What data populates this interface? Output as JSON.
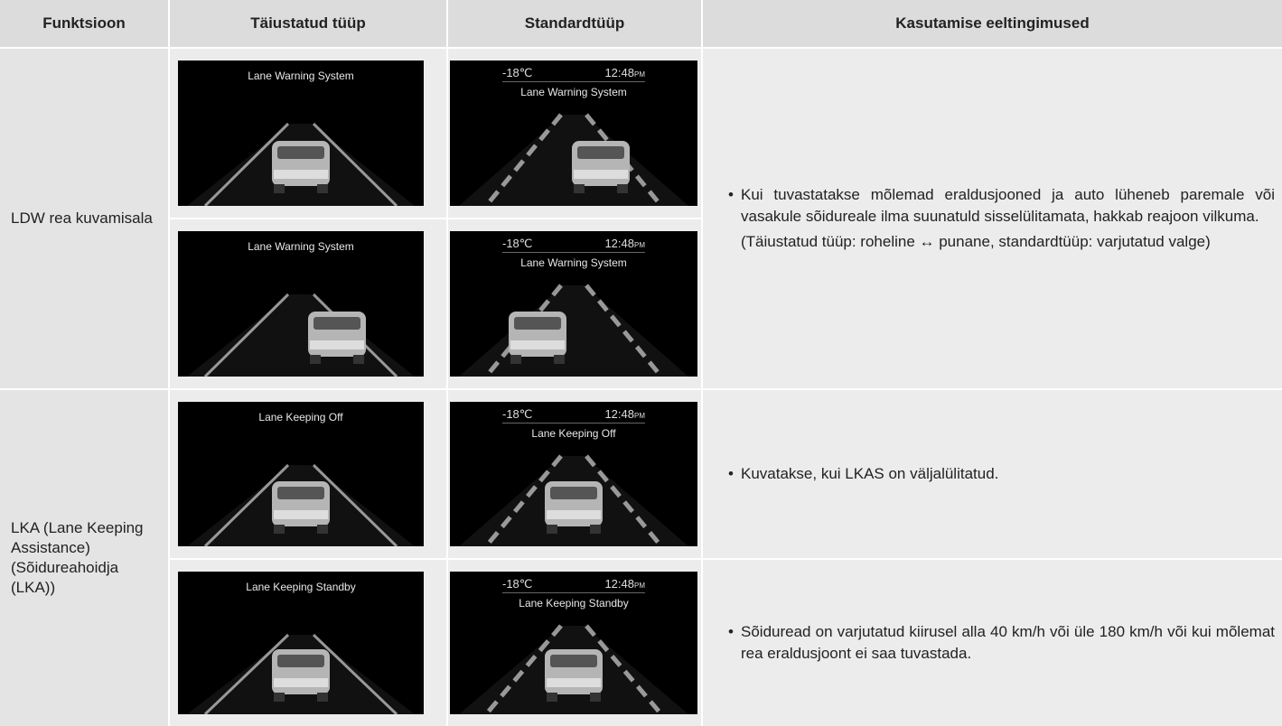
{
  "header": [
    "Funktsioon",
    "Täiustatud tüüp",
    "Standardtüüp",
    "Kasutamise eeltingimused"
  ],
  "groups": [
    {
      "function": "LDW rea kuvamisala",
      "condition": {
        "bullet": "Kui tuvastatakse mõlemad eraldusjooned ja auto lüheneb paremale või vasakule sõidureale ilma suunatuld sisselülitamata, hakkab reajoon vilkuma.",
        "note": "(Täiustatud tüüp: roheline ↔ punane, standardtüüp: varjutatud valge)"
      },
      "rows": [
        {
          "advanced": "Lane Warning System",
          "standard": {
            "label": "Lane Warning System",
            "temperature": "-18℃",
            "time": "12:48",
            "suffix": "PM"
          }
        },
        {
          "advanced": "Lane Warning System",
          "standard": {
            "label": "Lane Warning System",
            "temperature": "-18℃",
            "time": "12:48",
            "suffix": "PM"
          }
        }
      ]
    },
    {
      "function": "LKA (Lane Keeping Assistance) (Sõidureahoidja (LKA))",
      "rows": [
        {
          "advanced": "Lane Keeping Off",
          "standard": {
            "label": "Lane Keeping Off",
            "temperature": "-18℃",
            "time": "12:48",
            "suffix": "PM"
          },
          "condition": {
            "bullet": "Kuvatakse, kui LKAS on väljalülitatud."
          }
        },
        {
          "advanced": "Lane Keeping Standby",
          "standard": {
            "label": "Lane Keeping Standby",
            "temperature": "-18℃",
            "time": "12:48",
            "suffix": "PM"
          },
          "condition": {
            "bullet": "Sõiduread on varjutatud kiirusel alla 40 km/h või üle 180 km/h või kui mõlemat rea eraldusjoont ei saa tuvastada."
          }
        }
      ]
    }
  ]
}
